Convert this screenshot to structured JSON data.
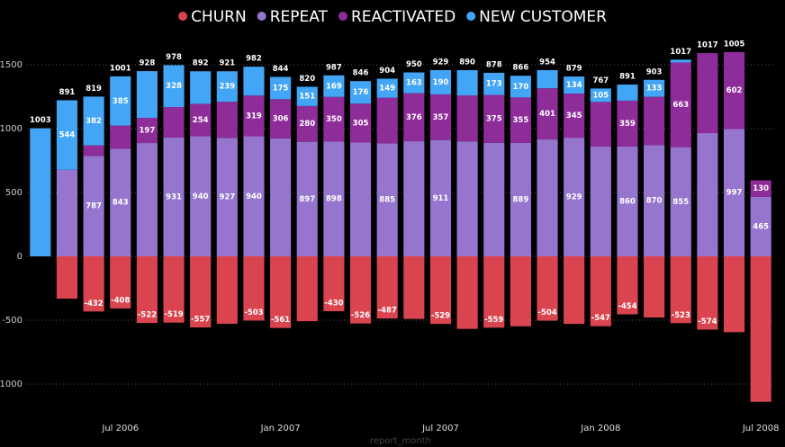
{
  "chart_data": {
    "type": "stacked_bar",
    "x_label": "report_month",
    "categories": [
      null,
      null,
      null,
      "Jul 2006",
      null,
      null,
      null,
      null,
      null,
      "Jan 2007",
      null,
      null,
      null,
      null,
      null,
      "Jul 2007",
      null,
      null,
      null,
      null,
      null,
      "Jan 2008",
      null,
      null,
      null,
      null,
      null,
      "Jul 2008"
    ],
    "series": [
      {
        "name": "CHURN",
        "color": "#d9444f",
        "values": [
          null,
          -331,
          -432,
          -408,
          -522,
          -519,
          -557,
          -528,
          -503,
          -561,
          -508,
          -430,
          -526,
          -487,
          -490,
          -529,
          -568,
          -559,
          -548,
          -504,
          -529,
          -547,
          -454,
          -479,
          -523,
          -574,
          -594,
          -1139
        ],
        "value_labels": [
          null,
          null,
          "-432",
          "-408",
          "-522",
          "-519",
          "-557",
          null,
          "-503",
          "-561",
          null,
          "-430",
          "-526",
          "-487",
          null,
          "-529",
          null,
          "-559",
          null,
          "-504",
          null,
          "-547",
          "-454",
          null,
          "-523",
          "-574",
          null,
          null
        ]
      },
      {
        "name": "REPEAT",
        "color": "#9575cd",
        "values": [
          null,
          678,
          787,
          843,
          887,
          931,
          940,
          927,
          940,
          924,
          897,
          898,
          891,
          885,
          901,
          911,
          900,
          889,
          889,
          915,
          929,
          859,
          860,
          870,
          855,
          965,
          997,
          465
        ],
        "value_labels": [
          null,
          null,
          "787",
          "843",
          null,
          "931",
          "940",
          "927",
          "940",
          null,
          "897",
          "898",
          null,
          "885",
          null,
          "911",
          null,
          null,
          "889",
          null,
          "929",
          null,
          "860",
          "870",
          "855",
          null,
          "997",
          "465"
        ]
      },
      {
        "name": "REACTIVATED",
        "color": "#8e2c9a",
        "values": [
          null,
          null,
          82,
          181,
          197,
          238,
          254,
          283,
          319,
          306,
          280,
          350,
          305,
          357,
          376,
          357,
          360,
          375,
          355,
          401,
          345,
          350,
          359,
          379,
          663,
          626,
          602,
          130
        ],
        "value_labels": [
          null,
          null,
          null,
          null,
          "197",
          null,
          "254",
          null,
          "319",
          "306",
          "280",
          "350",
          "305",
          null,
          "376",
          "357",
          null,
          "375",
          "355",
          "401",
          "345",
          null,
          "359",
          null,
          "663",
          null,
          "602",
          "130"
        ]
      },
      {
        "name": "NEW CUSTOMER",
        "color": "#42a5f5",
        "values": [
          1003,
          544,
          382,
          385,
          366,
          328,
          255,
          239,
          226,
          175,
          151,
          169,
          176,
          149,
          163,
          190,
          198,
          173,
          170,
          142,
          134,
          105,
          126,
          133,
          22,
          null,
          null,
          null
        ],
        "value_labels": [
          null,
          "544",
          "382",
          "385",
          null,
          "328",
          null,
          "239",
          null,
          "175",
          "151",
          "169",
          "176",
          "149",
          "163",
          "190",
          null,
          "173",
          "170",
          null,
          "134",
          "105",
          null,
          "133",
          null,
          null,
          null,
          null
        ]
      }
    ],
    "totals": [
      1003,
      891,
      819,
      1001,
      928,
      978,
      892,
      921,
      982,
      844,
      820,
      987,
      846,
      904,
      950,
      929,
      890,
      878,
      866,
      954,
      879,
      767,
      891,
      903,
      1017,
      1017,
      1005,
      null
    ],
    "ylim": [
      -1300,
      1650
    ],
    "yticks": [
      -1000,
      -500,
      0,
      500,
      1000,
      1500
    ],
    "grid": true
  }
}
